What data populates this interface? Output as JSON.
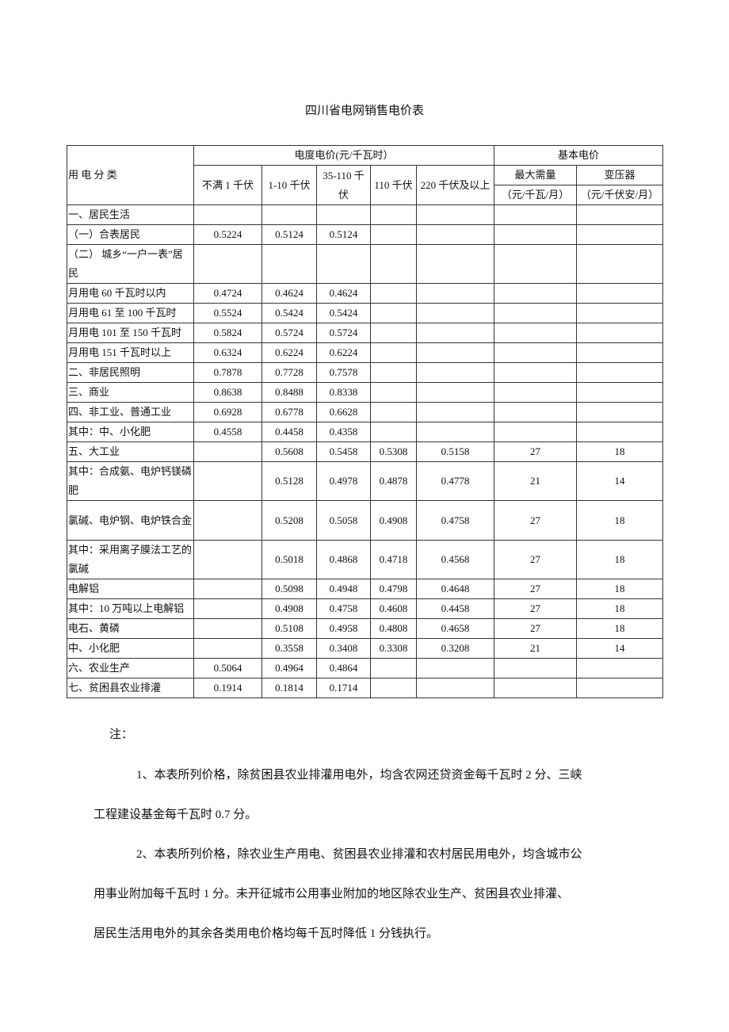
{
  "title": "四川省电网销售电价表",
  "header": {
    "category": "用 电 分 类",
    "energy_price": "电度电价(元/千瓦时）",
    "basic_price": "基本电价",
    "voltage_levels": [
      "不满 1 千伏",
      "1-10 千伏",
      "35-110 千伏",
      "110 千伏",
      "220 千伏及以上"
    ],
    "max_demand": "最大需量",
    "max_demand_unit": "（元/千瓦/月）",
    "transformer": "变压器",
    "transformer_unit": "（元/千伏安/月）"
  },
  "rows": [
    [
      "一、居民生活",
      "",
      "",
      "",
      "",
      "",
      "",
      ""
    ],
    [
      "（一）合表居民",
      "0.5224",
      "0.5124",
      "0.5124",
      "",
      "",
      "",
      ""
    ],
    [
      "（二） 城乡“一户一表”居民",
      "",
      "",
      "",
      "",
      "",
      "",
      ""
    ],
    [
      "月用电 60 千瓦时以内",
      "0.4724",
      "0.4624",
      "0.4624",
      "",
      "",
      "",
      ""
    ],
    [
      "月用电 61 至 100 千瓦时",
      "0.5524",
      "0.5424",
      "0.5424",
      "",
      "",
      "",
      ""
    ],
    [
      "月用电 101 至 150 千瓦时",
      "0.5824",
      "0.5724",
      "0.5724",
      "",
      "",
      "",
      ""
    ],
    [
      "月用电 151 千瓦时以上",
      "0.6324",
      "0.6224",
      "0.6224",
      "",
      "",
      "",
      ""
    ],
    [
      "二、非居民照明",
      "0.7878",
      "0.7728",
      "0.7578",
      "",
      "",
      "",
      ""
    ],
    [
      "三、商业",
      "0.8638",
      "0.8488",
      "0.8338",
      "",
      "",
      "",
      ""
    ],
    [
      "四、非工业、普通工业",
      "0.6928",
      "0.6778",
      "0.6628",
      "",
      "",
      "",
      ""
    ],
    [
      "其中：中、小化肥",
      "0.4558",
      "0.4458",
      "0.4358",
      "",
      "",
      "",
      ""
    ],
    [
      "五、大工业",
      "",
      "0.5608",
      "0.5458",
      "0.5308",
      "0.5158",
      "27",
      "18"
    ],
    [
      "其中：合成氨、电炉钙镁磷肥",
      "",
      "0.5128",
      "0.4978",
      "0.4878",
      "0.4778",
      "21",
      "14"
    ],
    [
      "氯碱、电炉钢、电炉铁合金",
      "",
      "0.5208",
      "0.5058",
      "0.4908",
      "0.4758",
      "27",
      "18"
    ],
    [
      "其中：采用离子膜法工艺的氯碱",
      "",
      "0.5018",
      "0.4868",
      "0.4718",
      "0.4568",
      "27",
      "18"
    ],
    [
      "电解铝",
      "",
      "0.5098",
      "0.4948",
      "0.4798",
      "0.4648",
      "27",
      "18"
    ],
    [
      "其中：10 万吨以上电解铝",
      "",
      "0.4908",
      "0.4758",
      "0.4608",
      "0.4458",
      "27",
      "18"
    ],
    [
      "电石、黄磷",
      "",
      "0.5108",
      "0.4958",
      "0.4808",
      "0.4658",
      "27",
      "18"
    ],
    [
      "中、小化肥",
      "",
      "0.3558",
      "0.3408",
      "0.3308",
      "0.3208",
      "21",
      "14"
    ],
    [
      "六、农业生产",
      "0.5064",
      "0.4964",
      "0.4864",
      "",
      "",
      "",
      ""
    ],
    [
      "七、贫困县农业排灌",
      "0.1914",
      "0.1814",
      "0.1714",
      "",
      "",
      "",
      ""
    ]
  ],
  "notes": {
    "heading": "注：",
    "lines": [
      "1、本表所列价格，除贫困县农业排灌用电外，均含农网还贷资金每千瓦时 2 分、三峡",
      "工程建设基金每千瓦时 0.7 分。",
      "2、本表所列价格，除农业生产用电、贫困县农业排灌和农村居民用电外，均含城市公",
      "用事业附加每千瓦时 1 分。未开征城市公用事业附加的地区除农业生产、贫困县农业排灌、",
      "居民生活用电外的其余各类用电价格均每千瓦时降低 1 分钱执行。"
    ]
  }
}
